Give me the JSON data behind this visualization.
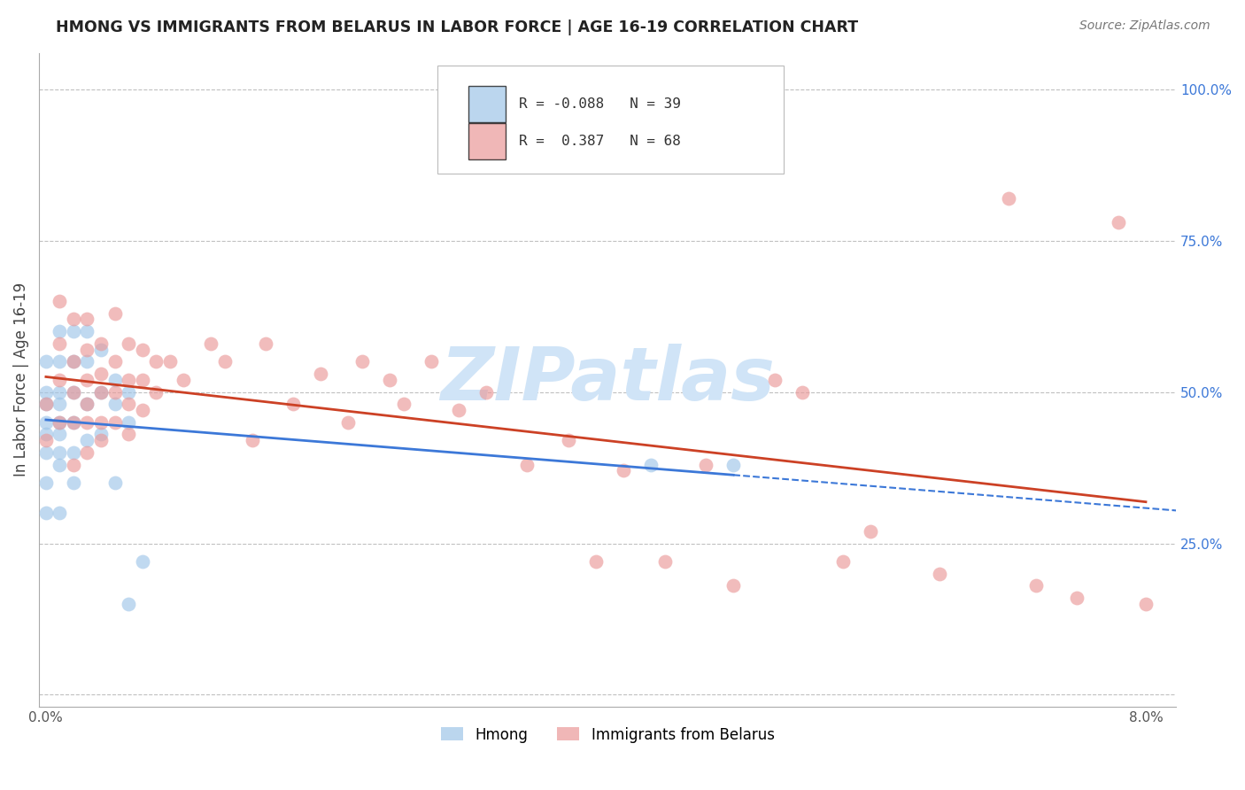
{
  "title": "HMONG VS IMMIGRANTS FROM BELARUS IN LABOR FORCE | AGE 16-19 CORRELATION CHART",
  "source": "Source: ZipAtlas.com",
  "ylabel": "In Labor Force | Age 16-19",
  "xlim": [
    -0.0005,
    0.0822
  ],
  "ylim": [
    -0.02,
    1.06
  ],
  "ytick_right_labels": [
    "25.0%",
    "50.0%",
    "75.0%",
    "100.0%"
  ],
  "ytick_right_values": [
    0.25,
    0.5,
    0.75,
    1.0
  ],
  "hmong_color": "#9fc5e8",
  "belarus_color": "#ea9999",
  "hmong_line_color": "#3c78d8",
  "belarus_line_color": "#cc4125",
  "background_color": "#ffffff",
  "grid_color": "#c0c0c0",
  "watermark": "ZIPatlas",
  "watermark_color": "#d0e4f7",
  "hmong_x": [
    0.0,
    0.0,
    0.0,
    0.0,
    0.0,
    0.0,
    0.0,
    0.0,
    0.001,
    0.001,
    0.001,
    0.001,
    0.001,
    0.001,
    0.001,
    0.001,
    0.001,
    0.002,
    0.002,
    0.002,
    0.002,
    0.002,
    0.002,
    0.003,
    0.003,
    0.003,
    0.003,
    0.004,
    0.004,
    0.004,
    0.005,
    0.005,
    0.005,
    0.006,
    0.006,
    0.006,
    0.007,
    0.044,
    0.05
  ],
  "hmong_y": [
    0.55,
    0.5,
    0.48,
    0.45,
    0.43,
    0.4,
    0.35,
    0.3,
    0.6,
    0.55,
    0.5,
    0.48,
    0.45,
    0.43,
    0.4,
    0.38,
    0.3,
    0.6,
    0.55,
    0.5,
    0.45,
    0.4,
    0.35,
    0.6,
    0.55,
    0.48,
    0.42,
    0.57,
    0.5,
    0.43,
    0.52,
    0.48,
    0.35,
    0.5,
    0.45,
    0.15,
    0.22,
    0.38,
    0.38
  ],
  "belarus_x": [
    0.0,
    0.0,
    0.001,
    0.001,
    0.001,
    0.001,
    0.002,
    0.002,
    0.002,
    0.002,
    0.002,
    0.003,
    0.003,
    0.003,
    0.003,
    0.003,
    0.003,
    0.004,
    0.004,
    0.004,
    0.004,
    0.004,
    0.005,
    0.005,
    0.005,
    0.005,
    0.006,
    0.006,
    0.006,
    0.006,
    0.007,
    0.007,
    0.007,
    0.008,
    0.008,
    0.009,
    0.01,
    0.012,
    0.013,
    0.015,
    0.016,
    0.018,
    0.02,
    0.022,
    0.023,
    0.025,
    0.026,
    0.028,
    0.03,
    0.032,
    0.035,
    0.038,
    0.04,
    0.042,
    0.045,
    0.048,
    0.05,
    0.053,
    0.055,
    0.058,
    0.06,
    0.065,
    0.07,
    0.072,
    0.075,
    0.078,
    0.08
  ],
  "belarus_y": [
    0.48,
    0.42,
    0.65,
    0.58,
    0.52,
    0.45,
    0.62,
    0.55,
    0.5,
    0.45,
    0.38,
    0.62,
    0.57,
    0.52,
    0.48,
    0.45,
    0.4,
    0.58,
    0.53,
    0.5,
    0.45,
    0.42,
    0.63,
    0.55,
    0.5,
    0.45,
    0.58,
    0.52,
    0.48,
    0.43,
    0.57,
    0.52,
    0.47,
    0.55,
    0.5,
    0.55,
    0.52,
    0.58,
    0.55,
    0.42,
    0.58,
    0.48,
    0.53,
    0.45,
    0.55,
    0.52,
    0.48,
    0.55,
    0.47,
    0.5,
    0.38,
    0.42,
    0.22,
    0.37,
    0.22,
    0.38,
    0.18,
    0.52,
    0.5,
    0.22,
    0.27,
    0.2,
    0.82,
    0.18,
    0.16,
    0.78,
    0.15
  ]
}
